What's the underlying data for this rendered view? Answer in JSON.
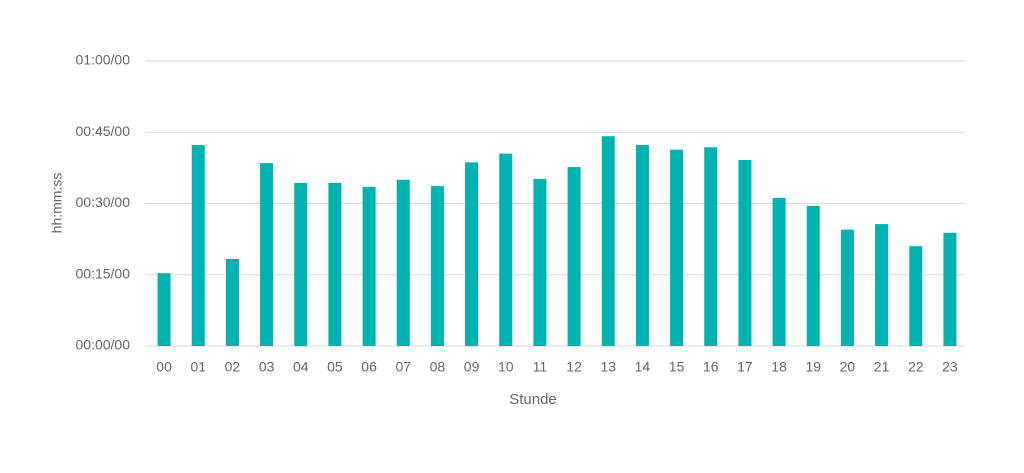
{
  "chart_data": {
    "type": "bar",
    "x_label": "Stunde",
    "y_label": "hh:mm:ss",
    "categories": [
      "00",
      "01",
      "02",
      "03",
      "04",
      "05",
      "06",
      "07",
      "08",
      "09",
      "10",
      "11",
      "12",
      "13",
      "14",
      "15",
      "16",
      "17",
      "18",
      "19",
      "20",
      "21",
      "22",
      "23"
    ],
    "values": [
      920,
      2540,
      1100,
      2310,
      2060,
      2060,
      2010,
      2100,
      2020,
      2320,
      2430,
      2110,
      2260,
      2650,
      2540,
      2480,
      2510,
      2350,
      1870,
      1770,
      1470,
      1540,
      1260,
      1430
    ],
    "color": "#00b2b0",
    "ylim": [
      0,
      3600
    ],
    "yticks": [
      {
        "value": 0,
        "label": "00:00/00"
      },
      {
        "value": 900,
        "label": "00:15/00"
      },
      {
        "value": 1800,
        "label": "00:30/00"
      },
      {
        "value": 2700,
        "label": "00:45/00"
      },
      {
        "value": 3600,
        "label": "01:00/00"
      }
    ],
    "grid": true
  }
}
